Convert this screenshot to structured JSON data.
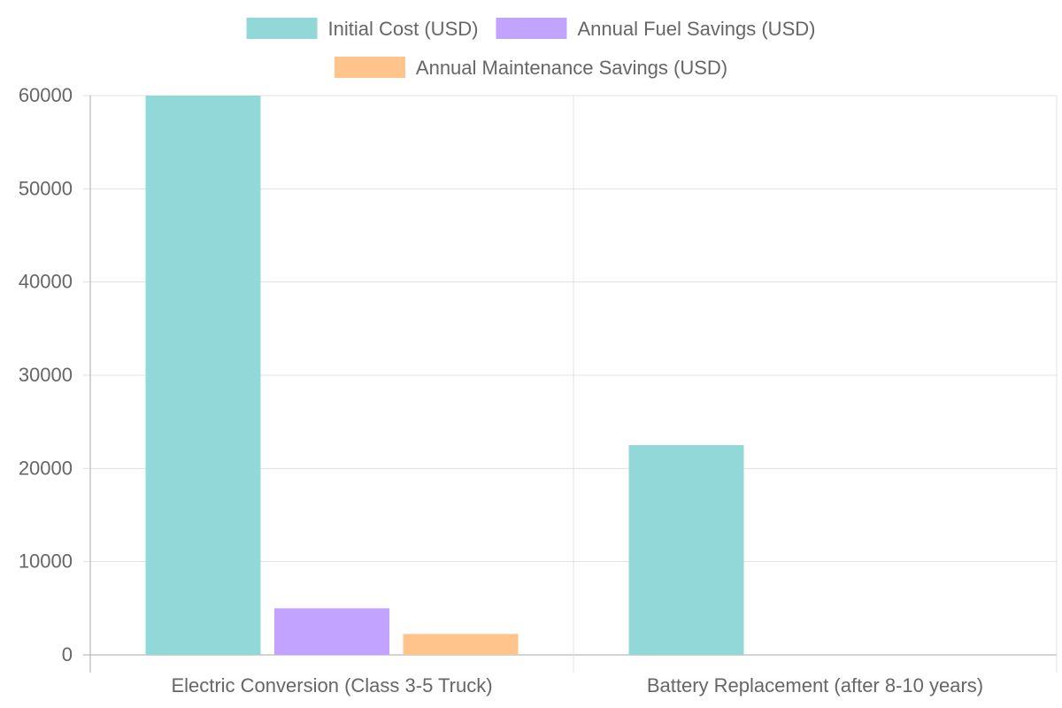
{
  "chart_data": {
    "type": "bar",
    "categories": [
      "Electric Conversion (Class 3-5 Truck)",
      "Battery Replacement (after 8-10 years)"
    ],
    "series": [
      {
        "name": "Initial Cost (USD)",
        "values": [
          60000,
          22500
        ],
        "color": "#93d8d8"
      },
      {
        "name": "Annual Fuel Savings (USD)",
        "values": [
          5000,
          null
        ],
        "color": "#c2a3ff"
      },
      {
        "name": "Annual Maintenance Savings (USD)",
        "values": [
          2250,
          null
        ],
        "color": "#ffc48c"
      }
    ],
    "ylim": [
      0,
      60000
    ],
    "yticks": [
      0,
      10000,
      20000,
      30000,
      40000,
      50000,
      60000
    ],
    "grid": true,
    "legend": "top"
  }
}
